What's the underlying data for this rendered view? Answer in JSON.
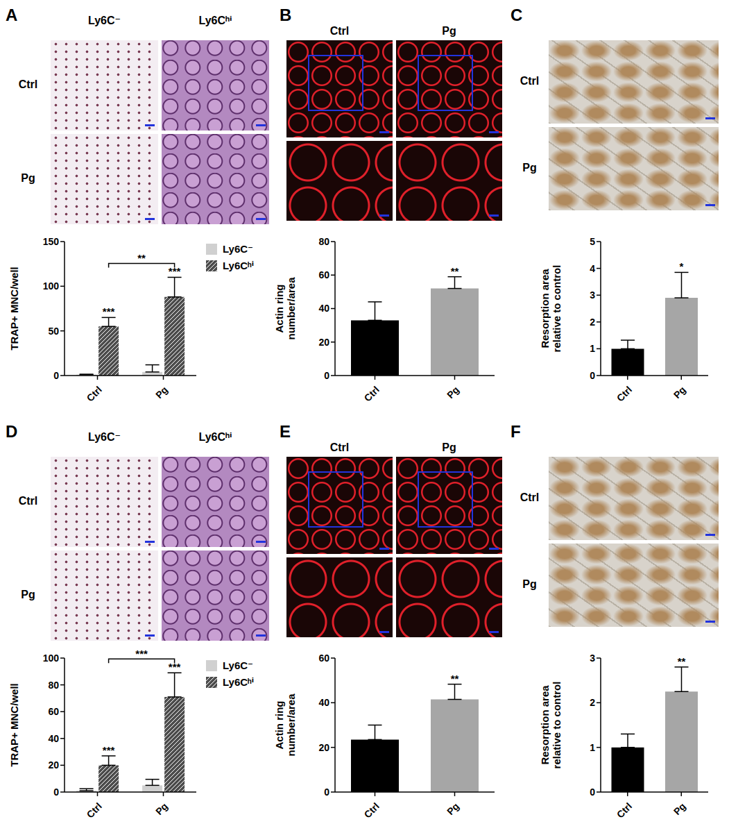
{
  "chart_data": [
    {
      "panel": "A",
      "type": "bar",
      "images": {
        "columns": [
          "Ly6C⁻",
          "Ly6Cʰⁱ"
        ],
        "rows": [
          "Ctrl",
          "Pg"
        ]
      },
      "categories": [
        "Ctrl",
        "Pg"
      ],
      "series": [
        {
          "name": "Ly6C⁻",
          "color": "#d0d0d0",
          "values": [
            1,
            4
          ],
          "errors": [
            0.5,
            8
          ]
        },
        {
          "name": "Ly6Cʰⁱ",
          "color": "#4d4d4d",
          "values": [
            55,
            88
          ],
          "errors": [
            10,
            22
          ],
          "significance": [
            "***",
            "***"
          ],
          "comparison": "**"
        }
      ],
      "y_label": "TRAP+ MNC/well",
      "ylim": [
        0,
        150
      ],
      "yticks": [
        0,
        50,
        100,
        150
      ],
      "legend": "right"
    },
    {
      "panel": "B",
      "type": "bar",
      "images": {
        "columns": [
          "Ctrl",
          "Pg"
        ]
      },
      "categories": [
        "Ctrl",
        "Pg"
      ],
      "values": [
        33,
        52
      ],
      "errors": [
        11,
        7
      ],
      "colors": [
        "#000000",
        "#a6a6a6"
      ],
      "significance": [
        null,
        "**"
      ],
      "y_label": "Actin ring\nnumber/area",
      "ylim": [
        0,
        80
      ],
      "yticks": [
        0,
        20,
        40,
        60,
        80
      ]
    },
    {
      "panel": "C",
      "type": "bar",
      "images": {
        "rows": [
          "Ctrl",
          "Pg"
        ]
      },
      "categories": [
        "Ctrl",
        "Pg"
      ],
      "values": [
        1,
        2.9
      ],
      "errors": [
        0.32,
        0.95
      ],
      "colors": [
        "#000000",
        "#a6a6a6"
      ],
      "significance": [
        null,
        "*"
      ],
      "y_label": "Resorption area\nrelative to control",
      "ylim": [
        0,
        5
      ],
      "yticks": [
        0,
        1,
        2,
        3,
        4,
        5
      ]
    },
    {
      "panel": "D",
      "type": "bar",
      "images": {
        "columns": [
          "Ly6C⁻",
          "Ly6Cʰⁱ"
        ],
        "rows": [
          "Ctrl",
          "Pg"
        ]
      },
      "categories": [
        "Ctrl",
        "Pg"
      ],
      "series": [
        {
          "name": "Ly6C⁻",
          "color": "#d0d0d0",
          "values": [
            1,
            5
          ],
          "errors": [
            1.5,
            4.5
          ]
        },
        {
          "name": "Ly6Cʰⁱ",
          "color": "#4d4d4d",
          "values": [
            20,
            71
          ],
          "errors": [
            7,
            18
          ],
          "significance": [
            "***",
            "***"
          ],
          "comparison": "***"
        }
      ],
      "y_label": "TRAP+ MNC/well",
      "ylim": [
        0,
        100
      ],
      "yticks": [
        0,
        20,
        40,
        60,
        80,
        100
      ],
      "legend": "right"
    },
    {
      "panel": "E",
      "type": "bar",
      "images": {
        "columns": [
          "Ctrl",
          "Pg"
        ]
      },
      "categories": [
        "Ctrl",
        "Pg"
      ],
      "values": [
        23.5,
        41.5
      ],
      "errors": [
        6.5,
        6.8
      ],
      "colors": [
        "#000000",
        "#a6a6a6"
      ],
      "significance": [
        null,
        "**"
      ],
      "y_label": "Actin ring\nnumber/area",
      "ylim": [
        0,
        60
      ],
      "yticks": [
        0,
        20,
        40,
        60
      ]
    },
    {
      "panel": "F",
      "type": "bar",
      "images": {
        "rows": [
          "Ctrl",
          "Pg"
        ]
      },
      "categories": [
        "Ctrl",
        "Pg"
      ],
      "values": [
        1,
        2.25
      ],
      "errors": [
        0.3,
        0.55
      ],
      "colors": [
        "#000000",
        "#a6a6a6"
      ],
      "significance": [
        null,
        "**"
      ],
      "y_label": "Resorption area\nrelative to control",
      "ylim": [
        0,
        3
      ],
      "yticks": [
        0,
        1,
        2,
        3
      ]
    }
  ]
}
